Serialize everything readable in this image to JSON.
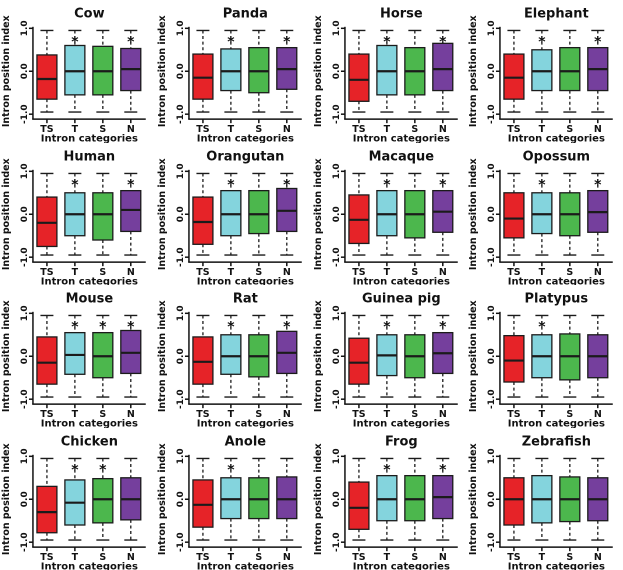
{
  "figure": {
    "background": "#ffffff",
    "grid": {
      "rows": 4,
      "cols": 4
    },
    "shared": {
      "ylabel": "Intron position index",
      "xlabel": "Intron categories",
      "categories": [
        "TS",
        "T",
        "S",
        "N"
      ],
      "ytick_labels": [
        "1.0",
        "0.0",
        "-1.0"
      ],
      "yticks": [
        1.0,
        0.0,
        -1.0
      ],
      "ylim": [
        -1.0,
        1.0
      ],
      "sig_marker": "*",
      "sig_marker_y": 0.74,
      "box_colors": [
        "#e62328",
        "#84d4dd",
        "#4cb74d",
        "#753f9d"
      ],
      "stroke_color": "#1b1b1b",
      "axis_color": "#111111"
    }
  },
  "chart_data": [
    {
      "type": "box",
      "title": "Cow",
      "boxes": [
        {
          "category": "TS",
          "q1": -0.65,
          "median": -0.18,
          "q3": 0.38,
          "lo": -0.95,
          "hi": 0.95,
          "sig": false
        },
        {
          "category": "T",
          "q1": -0.55,
          "median": 0.0,
          "q3": 0.6,
          "lo": -0.95,
          "hi": 0.95,
          "sig": true
        },
        {
          "category": "S",
          "q1": -0.55,
          "median": 0.0,
          "q3": 0.58,
          "lo": -0.95,
          "hi": 0.95,
          "sig": false
        },
        {
          "category": "N",
          "q1": -0.45,
          "median": 0.05,
          "q3": 0.53,
          "lo": -0.95,
          "hi": 0.95,
          "sig": true
        }
      ]
    },
    {
      "type": "box",
      "title": "Panda",
      "boxes": [
        {
          "category": "TS",
          "q1": -0.65,
          "median": -0.15,
          "q3": 0.4,
          "lo": -0.95,
          "hi": 0.95,
          "sig": false
        },
        {
          "category": "T",
          "q1": -0.45,
          "median": 0.0,
          "q3": 0.52,
          "lo": -0.95,
          "hi": 0.95,
          "sig": true
        },
        {
          "category": "S",
          "q1": -0.5,
          "median": 0.0,
          "q3": 0.55,
          "lo": -0.95,
          "hi": 0.95,
          "sig": false
        },
        {
          "category": "N",
          "q1": -0.42,
          "median": 0.05,
          "q3": 0.55,
          "lo": -0.95,
          "hi": 0.95,
          "sig": true
        }
      ]
    },
    {
      "type": "box",
      "title": "Horse",
      "boxes": [
        {
          "category": "TS",
          "q1": -0.7,
          "median": -0.2,
          "q3": 0.4,
          "lo": -0.95,
          "hi": 0.95,
          "sig": false
        },
        {
          "category": "T",
          "q1": -0.55,
          "median": 0.0,
          "q3": 0.6,
          "lo": -0.95,
          "hi": 0.95,
          "sig": true
        },
        {
          "category": "S",
          "q1": -0.55,
          "median": 0.0,
          "q3": 0.55,
          "lo": -0.95,
          "hi": 0.95,
          "sig": false
        },
        {
          "category": "N",
          "q1": -0.45,
          "median": 0.05,
          "q3": 0.65,
          "lo": -0.95,
          "hi": 0.95,
          "sig": true
        }
      ]
    },
    {
      "type": "box",
      "title": "Elephant",
      "boxes": [
        {
          "category": "TS",
          "q1": -0.65,
          "median": -0.15,
          "q3": 0.4,
          "lo": -0.95,
          "hi": 0.95,
          "sig": false
        },
        {
          "category": "T",
          "q1": -0.45,
          "median": 0.0,
          "q3": 0.5,
          "lo": -0.95,
          "hi": 0.95,
          "sig": true
        },
        {
          "category": "S",
          "q1": -0.45,
          "median": 0.0,
          "q3": 0.55,
          "lo": -0.95,
          "hi": 0.95,
          "sig": false
        },
        {
          "category": "N",
          "q1": -0.45,
          "median": 0.05,
          "q3": 0.55,
          "lo": -0.95,
          "hi": 0.95,
          "sig": true
        }
      ]
    },
    {
      "type": "box",
      "title": "Human",
      "boxes": [
        {
          "category": "TS",
          "q1": -0.75,
          "median": -0.2,
          "q3": 0.4,
          "lo": -0.95,
          "hi": 0.95,
          "sig": false
        },
        {
          "category": "T",
          "q1": -0.5,
          "median": 0.0,
          "q3": 0.5,
          "lo": -0.95,
          "hi": 0.95,
          "sig": true
        },
        {
          "category": "S",
          "q1": -0.6,
          "median": 0.0,
          "q3": 0.5,
          "lo": -0.95,
          "hi": 0.95,
          "sig": false
        },
        {
          "category": "N",
          "q1": -0.4,
          "median": 0.1,
          "q3": 0.55,
          "lo": -0.95,
          "hi": 0.95,
          "sig": true
        }
      ]
    },
    {
      "type": "box",
      "title": "Orangutan",
      "boxes": [
        {
          "category": "TS",
          "q1": -0.7,
          "median": -0.18,
          "q3": 0.4,
          "lo": -0.95,
          "hi": 0.95,
          "sig": false
        },
        {
          "category": "T",
          "q1": -0.5,
          "median": 0.0,
          "q3": 0.55,
          "lo": -0.95,
          "hi": 0.95,
          "sig": true
        },
        {
          "category": "S",
          "q1": -0.45,
          "median": 0.0,
          "q3": 0.55,
          "lo": -0.95,
          "hi": 0.95,
          "sig": false
        },
        {
          "category": "N",
          "q1": -0.4,
          "median": 0.08,
          "q3": 0.6,
          "lo": -0.95,
          "hi": 0.95,
          "sig": true
        }
      ]
    },
    {
      "type": "box",
      "title": "Macaque",
      "boxes": [
        {
          "category": "TS",
          "q1": -0.68,
          "median": -0.13,
          "q3": 0.45,
          "lo": -0.95,
          "hi": 0.95,
          "sig": false
        },
        {
          "category": "T",
          "q1": -0.5,
          "median": 0.0,
          "q3": 0.55,
          "lo": -0.95,
          "hi": 0.95,
          "sig": true
        },
        {
          "category": "S",
          "q1": -0.55,
          "median": 0.0,
          "q3": 0.55,
          "lo": -0.95,
          "hi": 0.95,
          "sig": false
        },
        {
          "category": "N",
          "q1": -0.42,
          "median": 0.06,
          "q3": 0.55,
          "lo": -0.95,
          "hi": 0.95,
          "sig": true
        }
      ]
    },
    {
      "type": "box",
      "title": "Opossum",
      "boxes": [
        {
          "category": "TS",
          "q1": -0.55,
          "median": -0.1,
          "q3": 0.5,
          "lo": -0.95,
          "hi": 0.95,
          "sig": false
        },
        {
          "category": "T",
          "q1": -0.45,
          "median": 0.0,
          "q3": 0.5,
          "lo": -0.95,
          "hi": 0.95,
          "sig": true
        },
        {
          "category": "S",
          "q1": -0.5,
          "median": 0.0,
          "q3": 0.5,
          "lo": -0.95,
          "hi": 0.95,
          "sig": false
        },
        {
          "category": "N",
          "q1": -0.42,
          "median": 0.05,
          "q3": 0.55,
          "lo": -0.95,
          "hi": 0.95,
          "sig": true
        }
      ]
    },
    {
      "type": "box",
      "title": "Mouse",
      "boxes": [
        {
          "category": "TS",
          "q1": -0.65,
          "median": -0.15,
          "q3": 0.45,
          "lo": -0.95,
          "hi": 0.95,
          "sig": false
        },
        {
          "category": "T",
          "q1": -0.42,
          "median": 0.03,
          "q3": 0.55,
          "lo": -0.95,
          "hi": 0.95,
          "sig": true
        },
        {
          "category": "S",
          "q1": -0.5,
          "median": 0.0,
          "q3": 0.55,
          "lo": -0.95,
          "hi": 0.95,
          "sig": true
        },
        {
          "category": "N",
          "q1": -0.4,
          "median": 0.08,
          "q3": 0.6,
          "lo": -0.95,
          "hi": 0.95,
          "sig": true
        }
      ]
    },
    {
      "type": "box",
      "title": "Rat",
      "boxes": [
        {
          "category": "TS",
          "q1": -0.65,
          "median": -0.13,
          "q3": 0.45,
          "lo": -0.95,
          "hi": 0.95,
          "sig": false
        },
        {
          "category": "T",
          "q1": -0.42,
          "median": 0.0,
          "q3": 0.5,
          "lo": -0.95,
          "hi": 0.95,
          "sig": true
        },
        {
          "category": "S",
          "q1": -0.48,
          "median": 0.0,
          "q3": 0.5,
          "lo": -0.95,
          "hi": 0.95,
          "sig": false
        },
        {
          "category": "N",
          "q1": -0.4,
          "median": 0.08,
          "q3": 0.58,
          "lo": -0.95,
          "hi": 0.95,
          "sig": true
        }
      ]
    },
    {
      "type": "box",
      "title": "Guinea pig",
      "boxes": [
        {
          "category": "TS",
          "q1": -0.65,
          "median": -0.15,
          "q3": 0.42,
          "lo": -0.95,
          "hi": 0.95,
          "sig": false
        },
        {
          "category": "T",
          "q1": -0.45,
          "median": 0.02,
          "q3": 0.5,
          "lo": -0.95,
          "hi": 0.95,
          "sig": true
        },
        {
          "category": "S",
          "q1": -0.5,
          "median": 0.0,
          "q3": 0.5,
          "lo": -0.95,
          "hi": 0.95,
          "sig": false
        },
        {
          "category": "N",
          "q1": -0.4,
          "median": 0.07,
          "q3": 0.55,
          "lo": -0.95,
          "hi": 0.95,
          "sig": true
        }
      ]
    },
    {
      "type": "box",
      "title": "Platypus",
      "boxes": [
        {
          "category": "TS",
          "q1": -0.6,
          "median": -0.1,
          "q3": 0.48,
          "lo": -0.95,
          "hi": 0.95,
          "sig": false
        },
        {
          "category": "T",
          "q1": -0.5,
          "median": 0.0,
          "q3": 0.5,
          "lo": -0.95,
          "hi": 0.95,
          "sig": true
        },
        {
          "category": "S",
          "q1": -0.55,
          "median": 0.0,
          "q3": 0.52,
          "lo": -0.95,
          "hi": 0.95,
          "sig": false
        },
        {
          "category": "N",
          "q1": -0.5,
          "median": 0.0,
          "q3": 0.5,
          "lo": -0.95,
          "hi": 0.95,
          "sig": false
        }
      ]
    },
    {
      "type": "box",
      "title": "Chicken",
      "boxes": [
        {
          "category": "TS",
          "q1": -0.78,
          "median": -0.3,
          "q3": 0.3,
          "lo": -0.95,
          "hi": 0.95,
          "sig": false
        },
        {
          "category": "T",
          "q1": -0.6,
          "median": -0.08,
          "q3": 0.45,
          "lo": -0.95,
          "hi": 0.95,
          "sig": true
        },
        {
          "category": "S",
          "q1": -0.55,
          "median": 0.0,
          "q3": 0.48,
          "lo": -0.95,
          "hi": 0.95,
          "sig": true
        },
        {
          "category": "N",
          "q1": -0.48,
          "median": 0.0,
          "q3": 0.5,
          "lo": -0.95,
          "hi": 0.95,
          "sig": false
        }
      ]
    },
    {
      "type": "box",
      "title": "Anole",
      "boxes": [
        {
          "category": "TS",
          "q1": -0.65,
          "median": -0.13,
          "q3": 0.45,
          "lo": -0.95,
          "hi": 0.95,
          "sig": false
        },
        {
          "category": "T",
          "q1": -0.45,
          "median": 0.0,
          "q3": 0.5,
          "lo": -0.95,
          "hi": 0.95,
          "sig": true
        },
        {
          "category": "S",
          "q1": -0.45,
          "median": 0.0,
          "q3": 0.5,
          "lo": -0.95,
          "hi": 0.95,
          "sig": false
        },
        {
          "category": "N",
          "q1": -0.45,
          "median": 0.0,
          "q3": 0.52,
          "lo": -0.95,
          "hi": 0.95,
          "sig": false
        }
      ]
    },
    {
      "type": "box",
      "title": "Frog",
      "boxes": [
        {
          "category": "TS",
          "q1": -0.7,
          "median": -0.2,
          "q3": 0.4,
          "lo": -0.95,
          "hi": 0.95,
          "sig": false
        },
        {
          "category": "T",
          "q1": -0.5,
          "median": 0.0,
          "q3": 0.55,
          "lo": -0.95,
          "hi": 0.95,
          "sig": true
        },
        {
          "category": "S",
          "q1": -0.5,
          "median": 0.0,
          "q3": 0.55,
          "lo": -0.95,
          "hi": 0.95,
          "sig": false
        },
        {
          "category": "N",
          "q1": -0.45,
          "median": 0.05,
          "q3": 0.55,
          "lo": -0.95,
          "hi": 0.95,
          "sig": true
        }
      ]
    },
    {
      "type": "box",
      "title": "Zebrafish",
      "boxes": [
        {
          "category": "TS",
          "q1": -0.6,
          "median": 0.0,
          "q3": 0.5,
          "lo": -0.95,
          "hi": 0.95,
          "sig": false
        },
        {
          "category": "T",
          "q1": -0.55,
          "median": 0.0,
          "q3": 0.55,
          "lo": -0.95,
          "hi": 0.95,
          "sig": false
        },
        {
          "category": "S",
          "q1": -0.52,
          "median": 0.0,
          "q3": 0.52,
          "lo": -0.95,
          "hi": 0.95,
          "sig": false
        },
        {
          "category": "N",
          "q1": -0.5,
          "median": 0.0,
          "q3": 0.5,
          "lo": -0.95,
          "hi": 0.95,
          "sig": false
        }
      ]
    }
  ]
}
